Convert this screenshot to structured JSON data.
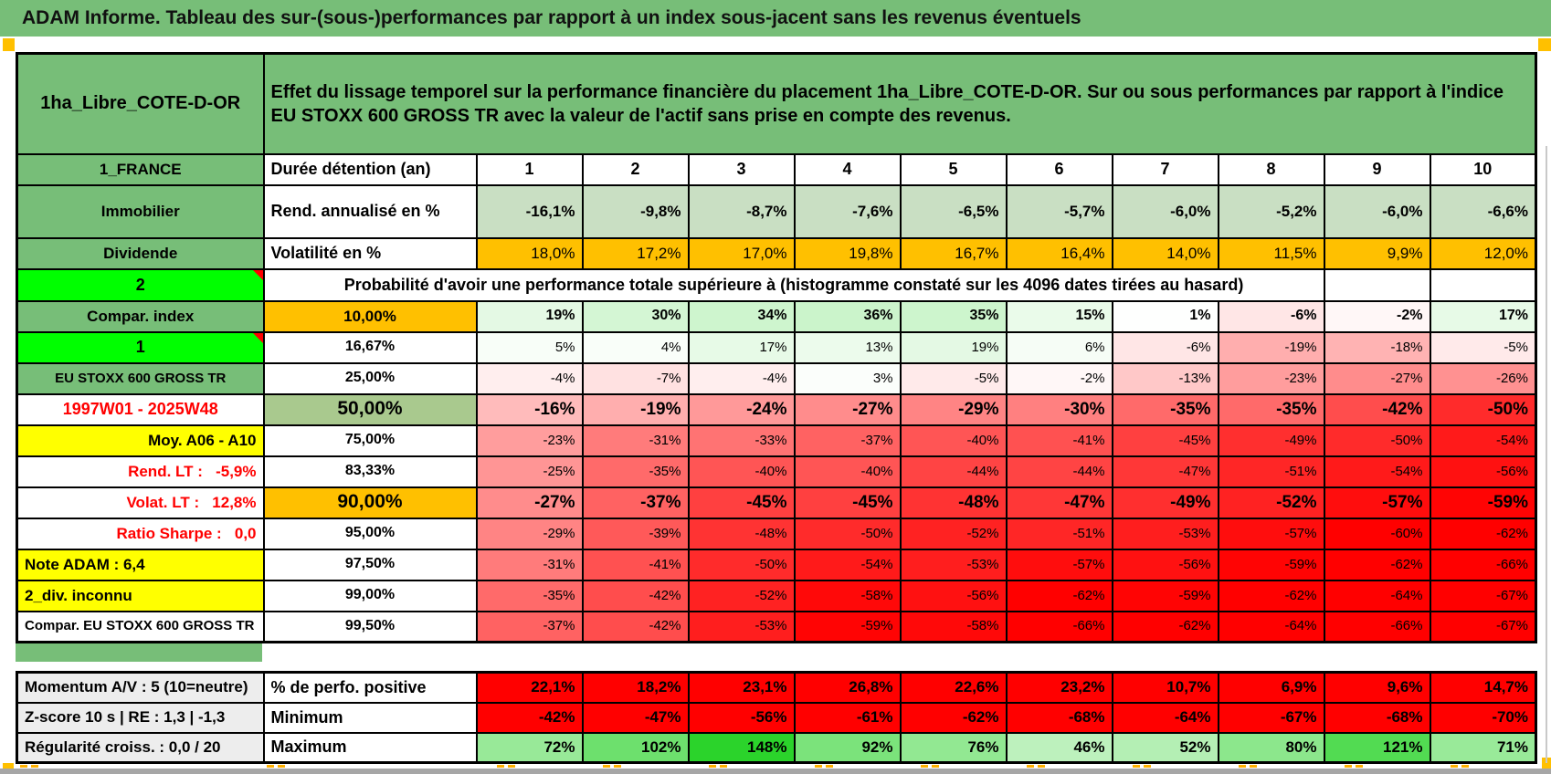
{
  "title": "ADAM Informe. Tableau des sur-(sous-)performances par rapport à un index sous-jacent sans les revenus éventuels",
  "header": {
    "asset_name": "1ha_Libre_COTE-D-OR",
    "description": "Effet du lissage temporel sur la performance financière du placement 1ha_Libre_COTE-D-OR. Sur ou sous performances par rapport à l'indice EU STOXX 600 GROSS TR avec la valeur de l'actif sans prise en compte des revenus."
  },
  "columns": [
    "1",
    "2",
    "3",
    "4",
    "5",
    "6",
    "7",
    "8",
    "9",
    "10"
  ],
  "top_rows": [
    {
      "label_a": "1_FRANCE",
      "label_b": "Durée détention (an)",
      "cells": [
        "1",
        "2",
        "3",
        "4",
        "5",
        "6",
        "7",
        "8",
        "9",
        "10"
      ]
    },
    {
      "label_a": "Immobilier",
      "label_b": "Rend. annualisé en %",
      "cells": [
        "-16,1%",
        "-9,8%",
        "-8,7%",
        "-7,6%",
        "-6,5%",
        "-5,7%",
        "-6,0%",
        "-5,2%",
        "-6,0%",
        "-6,6%"
      ]
    },
    {
      "label_a": "Dividende",
      "label_b": "Volatilité en %",
      "cells": [
        "18,0%",
        "17,2%",
        "17,0%",
        "19,8%",
        "16,7%",
        "16,4%",
        "14,0%",
        "11,5%",
        "9,9%",
        "12,0%"
      ]
    }
  ],
  "banner": {
    "label_a": "2",
    "text": "Probabilité d'avoir une performance totale supérieure à (histogramme constaté sur les 4096 dates tirées au hasard)"
  },
  "prob_rows": [
    {
      "label": "Compar. index",
      "quantile": "10,00%",
      "values": [
        19,
        30,
        34,
        36,
        35,
        15,
        1,
        -6,
        -2,
        17
      ]
    },
    {
      "label": "1",
      "quantile": "16,67%",
      "values": [
        5,
        4,
        17,
        13,
        19,
        6,
        -6,
        -19,
        -18,
        -5
      ]
    },
    {
      "label": "EU STOXX 600 GROSS TR",
      "quantile": "25,00%",
      "values": [
        -4,
        -7,
        -4,
        3,
        -5,
        -2,
        -13,
        -23,
        -27,
        -26
      ]
    },
    {
      "label": "1997W01 - 2025W48",
      "quantile": "50,00%",
      "values": [
        -16,
        -19,
        -24,
        -27,
        -29,
        -30,
        -35,
        -35,
        -42,
        -50
      ]
    },
    {
      "label": "Moy. A06 - A10",
      "quantile": "75,00%",
      "values": [
        -23,
        -31,
        -33,
        -37,
        -40,
        -41,
        -45,
        -49,
        -50,
        -54
      ]
    },
    {
      "label": "Rend. LT :   -5,9%",
      "quantile": "83,33%",
      "values": [
        -25,
        -35,
        -40,
        -40,
        -44,
        -44,
        -47,
        -51,
        -54,
        -56
      ]
    },
    {
      "label": "Volat. LT :   12,8%",
      "quantile": "90,00%",
      "values": [
        -27,
        -37,
        -45,
        -45,
        -48,
        -47,
        -49,
        -52,
        -57,
        -59
      ]
    },
    {
      "label": "Ratio Sharpe :   0,0",
      "quantile": "95,00%",
      "values": [
        -29,
        -39,
        -48,
        -50,
        -52,
        -51,
        -53,
        -57,
        -60,
        -62
      ]
    },
    {
      "label": "Note ADAM : 6,4",
      "quantile": "97,50%",
      "values": [
        -31,
        -41,
        -50,
        -54,
        -53,
        -57,
        -56,
        -59,
        -62,
        -66
      ]
    },
    {
      "label": "2_div. inconnu",
      "quantile": "99,00%",
      "values": [
        -35,
        -42,
        -52,
        -58,
        -56,
        -62,
        -59,
        -62,
        -64,
        -67
      ]
    },
    {
      "label": "Compar. EU STOXX 600 GROSS TR",
      "quantile": "99,50%",
      "values": [
        -37,
        -42,
        -53,
        -59,
        -58,
        -66,
        -62,
        -64,
        -66,
        -67
      ]
    }
  ],
  "bottom_rows": [
    {
      "label": "Momentum A/V : 5 (10=neutre)",
      "metric": "% de perfo. positive",
      "cells": [
        "22,1%",
        "18,2%",
        "23,1%",
        "26,8%",
        "22,6%",
        "23,2%",
        "10,7%",
        "6,9%",
        "9,6%",
        "14,7%"
      ]
    },
    {
      "label": "Z-score 10 s | RE : 1,3 | -1,3",
      "metric": "Minimum",
      "cells": [
        "-42%",
        "-47%",
        "-56%",
        "-61%",
        "-62%",
        "-68%",
        "-64%",
        "-67%",
        "-68%",
        "-70%"
      ]
    },
    {
      "label": "Régularité croiss. : 0,0 / 20",
      "metric": "Maximum",
      "values": [
        72,
        102,
        148,
        92,
        76,
        46,
        52,
        80,
        121,
        71
      ]
    }
  ],
  "colors": {
    "header_green": "#77BE78",
    "lime_green": "#00FF00",
    "accent_orange": "#FFC000",
    "accent_yellow": "#FFFF00",
    "sage_light": "#C9DFC3",
    "sage_medium": "#A9C98E",
    "label_gray": "#EDEDED",
    "alert_red": "#FF0000"
  }
}
